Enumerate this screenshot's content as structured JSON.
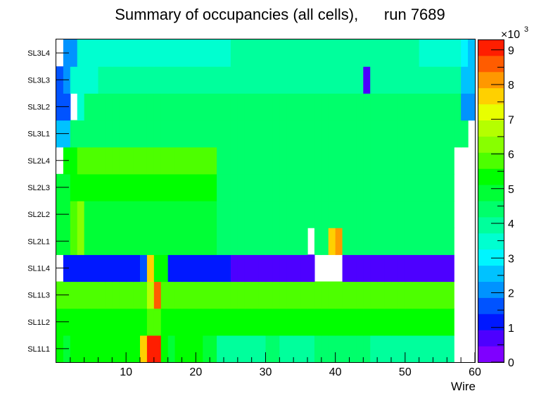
{
  "chart_data": {
    "type": "heatmap",
    "title": "Summary of occupancies (all cells),      run 7689",
    "xlabel": "Wire",
    "ylabel": "",
    "xlim": [
      0,
      60
    ],
    "x_ticks": [
      "10",
      "20",
      "30",
      "40",
      "50",
      "60"
    ],
    "y_categories": [
      "SL1L1",
      "SL1L2",
      "SL1L3",
      "SL1L4",
      "SL2L1",
      "SL2L2",
      "SL2L3",
      "SL2L4",
      "SL3L1",
      "SL3L2",
      "SL3L3",
      "SL3L4"
    ],
    "colorbar": {
      "min": 0,
      "max": 9300,
      "exponent_label": "×10",
      "exponent": "3",
      "ticks": [
        "0",
        "1",
        "2",
        "3",
        "4",
        "5",
        "6",
        "7",
        "8",
        "9"
      ],
      "palette": [
        "#7f00ff",
        "#4d00ff",
        "#0018ff",
        "#0053ff",
        "#0093ff",
        "#00c2ff",
        "#00f5ff",
        "#00ffd0",
        "#00ff9c",
        "#00ff6b",
        "#00ff36",
        "#00ff00",
        "#4dff00",
        "#88ff00",
        "#b5ff00",
        "#e8ff00",
        "#ffd000",
        "#ff9800",
        "#ff5c00",
        "#ff1e00"
      ]
    },
    "rows": [
      {
        "layer": "SL1L1",
        "values": [
          5500,
          5000,
          5200,
          5200,
          5200,
          5500,
          5500,
          5500,
          5500,
          5500,
          5500,
          5200,
          7600,
          9000,
          9000,
          5500,
          5000,
          5200,
          5200,
          5200,
          5200,
          5000,
          4800,
          4000,
          4000,
          4000,
          4000,
          4000,
          4000,
          4000,
          4200,
          4200,
          4000,
          4000,
          4000,
          4000,
          4000,
          4200,
          4300,
          4300,
          4300,
          4300,
          4300,
          4300,
          4300,
          4000,
          4000,
          4000,
          4000,
          4000,
          4000,
          4000,
          4000,
          4000,
          4000,
          4000,
          4000,
          null,
          null,
          null
        ]
      },
      {
        "layer": "SL1L2",
        "values": [
          5200,
          5200,
          5200,
          5500,
          5500,
          5500,
          5500,
          5500,
          5500,
          5500,
          5500,
          5500,
          5500,
          6000,
          6000,
          5200,
          5200,
          5200,
          5200,
          5200,
          5200,
          5200,
          5200,
          5200,
          5200,
          5200,
          5200,
          5200,
          5200,
          5200,
          5200,
          5200,
          5200,
          5200,
          5200,
          5200,
          5200,
          5200,
          5200,
          5200,
          5200,
          5200,
          5200,
          5200,
          5200,
          5200,
          5200,
          5200,
          5200,
          5200,
          5200,
          5200,
          5200,
          5200,
          5200,
          5200,
          5200,
          null,
          null,
          null
        ]
      },
      {
        "layer": "SL1L3",
        "values": [
          5600,
          5600,
          5600,
          5600,
          5600,
          5600,
          5600,
          5600,
          5600,
          5600,
          5600,
          5600,
          5600,
          6800,
          8600,
          5600,
          5600,
          5600,
          5600,
          5600,
          5600,
          5600,
          5600,
          5600,
          5600,
          5600,
          5600,
          5600,
          5600,
          5600,
          5600,
          5600,
          5600,
          5600,
          5600,
          5600,
          5600,
          5600,
          5600,
          5600,
          5600,
          5600,
          5600,
          5600,
          5600,
          5600,
          5600,
          5600,
          5600,
          5600,
          5600,
          5600,
          5600,
          5600,
          5600,
          5600,
          5600,
          null,
          null,
          null
        ]
      },
      {
        "layer": "SL1L4",
        "values": [
          null,
          1000,
          1000,
          1000,
          1000,
          1000,
          1000,
          1000,
          1000,
          1000,
          1000,
          1000,
          1500,
          7500,
          5500,
          5500,
          1000,
          1000,
          1000,
          1000,
          1000,
          1000,
          1000,
          1000,
          1000,
          600,
          600,
          600,
          600,
          600,
          600,
          600,
          600,
          600,
          600,
          600,
          600,
          null,
          null,
          null,
          null,
          600,
          600,
          600,
          600,
          600,
          600,
          600,
          600,
          600,
          600,
          600,
          600,
          600,
          600,
          600,
          600,
          null,
          null,
          null
        ]
      },
      {
        "layer": "SL2L1",
        "values": [
          4800,
          4800,
          5800,
          6500,
          5000,
          5000,
          5000,
          5000,
          5000,
          5000,
          5000,
          5000,
          5000,
          5000,
          5000,
          5000,
          5000,
          5000,
          5000,
          5000,
          5000,
          5000,
          5000,
          4500,
          4500,
          4500,
          4500,
          4500,
          4500,
          4500,
          4500,
          4500,
          4500,
          4500,
          4500,
          4500,
          null,
          4500,
          4500,
          7500,
          8000,
          4500,
          4500,
          4500,
          4500,
          4500,
          4500,
          4500,
          4500,
          4500,
          4500,
          4500,
          4500,
          4500,
          4500,
          4500,
          4500,
          null,
          null,
          null
        ]
      },
      {
        "layer": "SL2L2",
        "values": [
          4800,
          4800,
          5800,
          6500,
          5000,
          5000,
          5000,
          5000,
          5000,
          5000,
          5000,
          5000,
          5000,
          5000,
          5000,
          5000,
          5000,
          5000,
          5000,
          5000,
          5000,
          5000,
          5000,
          4500,
          4500,
          4500,
          4500,
          4500,
          4500,
          4500,
          4500,
          4500,
          4500,
          4500,
          4500,
          4500,
          4500,
          4500,
          4500,
          4500,
          4500,
          4500,
          4500,
          4500,
          4500,
          4500,
          4500,
          4500,
          4500,
          4500,
          4500,
          4500,
          4500,
          4500,
          4500,
          4500,
          4500,
          null,
          null,
          null
        ]
      },
      {
        "layer": "SL2L3",
        "values": [
          4800,
          4800,
          5400,
          5400,
          5400,
          5400,
          5400,
          5400,
          5400,
          5400,
          5400,
          5400,
          5400,
          5400,
          5400,
          5400,
          5400,
          5400,
          5400,
          5400,
          5400,
          5400,
          5400,
          4500,
          4500,
          4500,
          4500,
          4500,
          4500,
          4500,
          4500,
          4500,
          4500,
          4500,
          4500,
          4500,
          4500,
          4500,
          4500,
          4500,
          4500,
          4500,
          4500,
          4500,
          4500,
          4500,
          4500,
          4500,
          4500,
          4500,
          4500,
          4500,
          4500,
          4500,
          4500,
          4500,
          4500,
          null,
          null,
          null
        ]
      },
      {
        "layer": "SL2L4",
        "values": [
          null,
          5200,
          5200,
          5600,
          5600,
          5600,
          5600,
          5600,
          5600,
          5600,
          5600,
          5600,
          5600,
          5600,
          5600,
          5600,
          5600,
          5600,
          5600,
          5600,
          5600,
          5600,
          5600,
          4500,
          4500,
          4500,
          4500,
          4500,
          4500,
          4500,
          4500,
          4500,
          4500,
          4500,
          4500,
          4500,
          4500,
          4500,
          4500,
          4500,
          4500,
          4500,
          4500,
          4500,
          4500,
          4500,
          4500,
          4500,
          4500,
          4500,
          4500,
          4500,
          4500,
          4500,
          4500,
          4500,
          4500,
          null,
          null,
          null
        ]
      },
      {
        "layer": "SL3L1",
        "values": [
          2400,
          2400,
          4300,
          4300,
          4300,
          4300,
          4300,
          4300,
          4300,
          4300,
          4300,
          4300,
          4300,
          4300,
          4300,
          4300,
          4300,
          4300,
          4300,
          4300,
          4300,
          4300,
          4300,
          4300,
          4300,
          4300,
          4300,
          4300,
          4300,
          4300,
          4300,
          4300,
          4300,
          4300,
          4300,
          4300,
          4300,
          4300,
          4300,
          4300,
          4300,
          4300,
          4300,
          4300,
          4300,
          4300,
          4300,
          4300,
          4300,
          4300,
          4300,
          4300,
          4300,
          4300,
          4300,
          4300,
          4300,
          4300,
          4300,
          null
        ]
      },
      {
        "layer": "SL3L2",
        "values": [
          1700,
          1700,
          null,
          3400,
          4200,
          4200,
          4200,
          4200,
          4200,
          4200,
          4200,
          4200,
          4200,
          4200,
          4200,
          4200,
          4200,
          4200,
          4200,
          4200,
          4200,
          4200,
          4200,
          4200,
          4200,
          4200,
          4200,
          4200,
          4200,
          4200,
          4200,
          4200,
          4200,
          4200,
          4200,
          4200,
          4200,
          4200,
          4200,
          4200,
          4200,
          4200,
          4200,
          4200,
          4200,
          4200,
          4200,
          4200,
          4200,
          4200,
          4200,
          4200,
          4200,
          4200,
          4200,
          4200,
          4200,
          4200,
          2000,
          2000
        ]
      },
      {
        "layer": "SL3L3",
        "values": [
          1500,
          2000,
          3300,
          3300,
          3300,
          3300,
          4000,
          4000,
          4000,
          4000,
          4000,
          4000,
          4000,
          4000,
          4000,
          4000,
          4000,
          4000,
          4000,
          4000,
          4000,
          4000,
          4000,
          4000,
          4000,
          4000,
          4000,
          4000,
          4000,
          4000,
          4000,
          4000,
          4000,
          4000,
          4000,
          4000,
          4000,
          4000,
          4000,
          4000,
          4000,
          4000,
          4000,
          4000,
          700,
          4000,
          4000,
          4000,
          4000,
          4000,
          4000,
          4000,
          4000,
          4000,
          4000,
          4000,
          4000,
          4000,
          2400,
          2400
        ]
      },
      {
        "layer": "SL3L4",
        "values": [
          null,
          2000,
          2000,
          3500,
          3500,
          3500,
          3500,
          3500,
          3500,
          3500,
          3500,
          3500,
          3500,
          3500,
          3500,
          3500,
          3500,
          3500,
          3500,
          3500,
          3500,
          3500,
          3500,
          3500,
          3500,
          4100,
          4100,
          4100,
          4100,
          4100,
          4100,
          4100,
          4100,
          4100,
          4100,
          4100,
          4100,
          4100,
          4100,
          4100,
          4100,
          4100,
          4100,
          4100,
          4100,
          4100,
          4100,
          4100,
          4100,
          4100,
          4100,
          4100,
          3500,
          3500,
          3500,
          3500,
          3500,
          3500,
          2800,
          2400
        ]
      }
    ]
  }
}
